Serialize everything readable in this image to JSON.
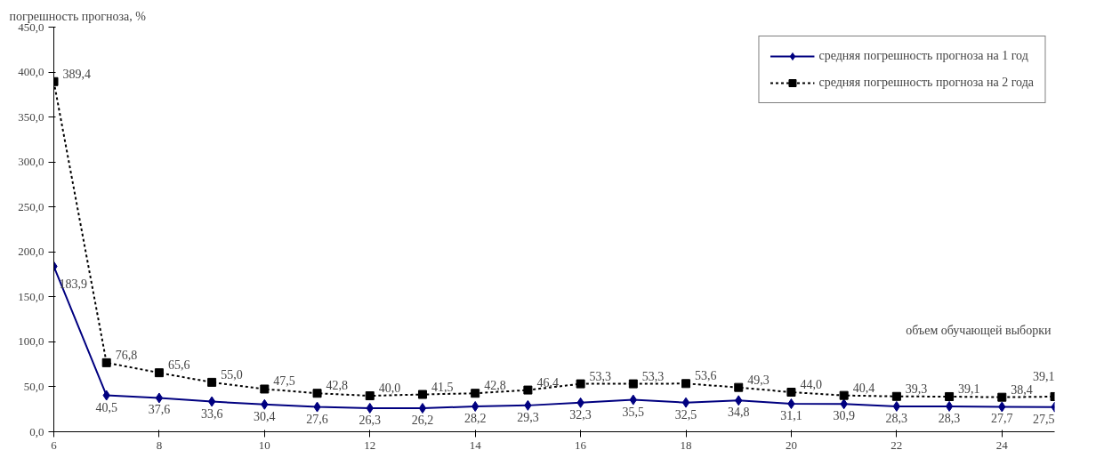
{
  "chart_data": {
    "type": "line",
    "ylabel": "погрешность прогноза, %",
    "xlabel": "объем обучающей выборки",
    "x": [
      6,
      7,
      8,
      9,
      10,
      11,
      12,
      13,
      14,
      15,
      16,
      17,
      18,
      19,
      20,
      21,
      22,
      23,
      24,
      25
    ],
    "xlim": [
      6,
      25
    ],
    "xticks": [
      6,
      8,
      10,
      12,
      14,
      16,
      18,
      20,
      22,
      24
    ],
    "ylim": [
      0,
      450
    ],
    "yticks": [
      {
        "value": 0,
        "label": "0,0"
      },
      {
        "value": 50,
        "label": "50,0"
      },
      {
        "value": 100,
        "label": "100,0"
      },
      {
        "value": 150,
        "label": "150,0"
      },
      {
        "value": 200,
        "label": "200,0"
      },
      {
        "value": 250,
        "label": "250,0"
      },
      {
        "value": 300,
        "label": "300,0"
      },
      {
        "value": 350,
        "label": "350,0"
      },
      {
        "value": 400,
        "label": "400,0"
      },
      {
        "value": 450,
        "label": "450,0"
      }
    ],
    "grid": false,
    "legend": "top right",
    "series": [
      {
        "name": "средняя погрешность прогноза на 1 год",
        "color": "#000080",
        "marker": "diamond",
        "line_style": "solid",
        "values": [
          183.9,
          40.5,
          37.6,
          33.6,
          30.4,
          27.6,
          26.3,
          26.2,
          28.2,
          29.3,
          32.3,
          35.5,
          32.5,
          34.8,
          31.1,
          30.9,
          28.3,
          28.3,
          27.7,
          27.5
        ],
        "value_labels": [
          "183,9",
          "40,5",
          "37,6",
          "33,6",
          "30,4",
          "27,6",
          "26,3",
          "26,2",
          "28,2",
          "29,3",
          "32,3",
          "35,5",
          "32,5",
          "34,8",
          "31,1",
          "30,9",
          "28,3",
          "28,3",
          "27,7",
          "27,5"
        ]
      },
      {
        "name": "средняя погрешность прогноза на 2 года",
        "color": "#000000",
        "marker": "square",
        "line_style": "dotted",
        "values": [
          389.4,
          76.8,
          65.6,
          55.0,
          47.5,
          42.8,
          40.0,
          41.5,
          42.8,
          46.4,
          53.3,
          53.3,
          53.6,
          49.3,
          44.0,
          40.4,
          39.3,
          39.1,
          38.4,
          39.1
        ],
        "value_labels": [
          "389,4",
          "76,8",
          "65,6",
          "55,0",
          "47,5",
          "42,8",
          "40,0",
          "41,5",
          "42,8",
          "46,4",
          "53,3",
          "53,3",
          "53,6",
          "49,3",
          "44,0",
          "40,4",
          "39,3",
          "39,1",
          "38,4",
          "39,1"
        ]
      }
    ]
  }
}
